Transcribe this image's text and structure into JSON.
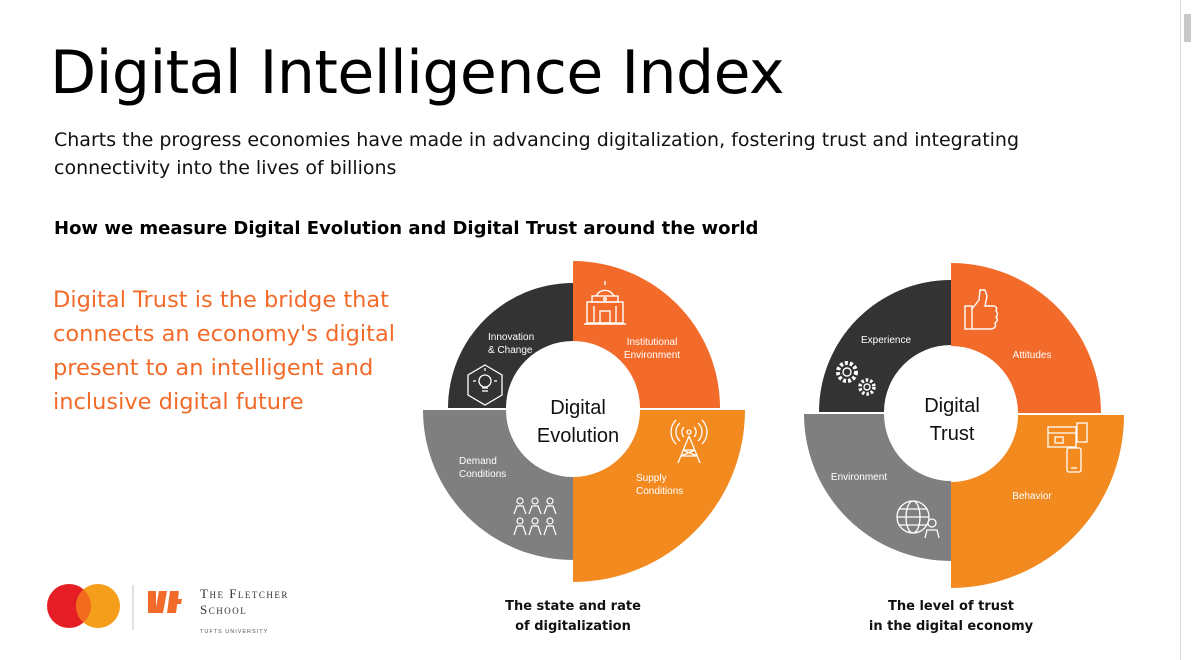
{
  "title": "Digital Intelligence Index",
  "subtitle": "Charts the progress economies have made in advancing digitalization, fostering trust and integrating connectivity into the lives of billions",
  "section_heading": "How we measure Digital Evolution and Digital Trust around the world",
  "quote": "Digital Trust is the bridge that connects an economy's digital present to an intelligent and inclusive digital future",
  "colors": {
    "orange": "#f26b2a",
    "amber": "#f28a20",
    "dark": "#333333",
    "gray": "#7f7f7f",
    "white": "#ffffff"
  },
  "evolution": {
    "center_line1": "Digital",
    "center_line2": "Evolution",
    "segments": {
      "institutional": {
        "line1": "Institutional",
        "line2": "Environment",
        "icon": "building-icon"
      },
      "supply": {
        "line1": "Supply",
        "line2": "Conditions",
        "icon": "antenna-tower-icon"
      },
      "demand": {
        "line1": "Demand",
        "line2": "Conditions",
        "icon": "people-group-icon"
      },
      "innovation": {
        "line1": "Innovation",
        "line2": "& Change",
        "icon": "lightbulb-icon"
      }
    },
    "caption_line1": "The state and rate",
    "caption_line2": "of digitalization"
  },
  "trust": {
    "center_line1": "Digital",
    "center_line2": "Trust",
    "segments": {
      "attitudes": {
        "label": "Attitudes",
        "icon": "thumbs-up-icon"
      },
      "behavior": {
        "label": "Behavior",
        "icon": "devices-icon"
      },
      "environment": {
        "label": "Environment",
        "icon": "globe-user-icon"
      },
      "experience": {
        "label": "Experience",
        "icon": "gears-icon"
      }
    },
    "caption_line1": "The level of trust",
    "caption_line2": "in the digital economy"
  },
  "logos": {
    "mastercard": {
      "icon": "mastercard-logo"
    },
    "fletcher": {
      "line1": "The Fletcher",
      "line2": "School",
      "line3": "TUFTS UNIVERSITY"
    }
  }
}
